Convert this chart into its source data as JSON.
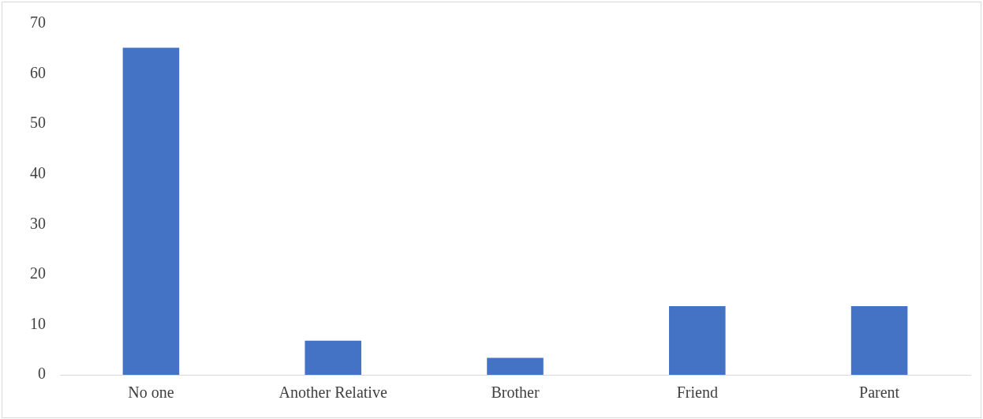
{
  "chart_data": {
    "type": "bar",
    "categories": [
      "No one",
      "Another Relative",
      "Brother",
      "Friend",
      "Parent"
    ],
    "values": [
      65.2,
      6.8,
      3.4,
      13.7,
      13.7
    ],
    "color": "#4472c4",
    "ylim": [
      0,
      70
    ],
    "yticks": [
      0,
      10,
      20,
      30,
      40,
      50,
      60,
      70
    ],
    "grid": false,
    "legend": false
  }
}
